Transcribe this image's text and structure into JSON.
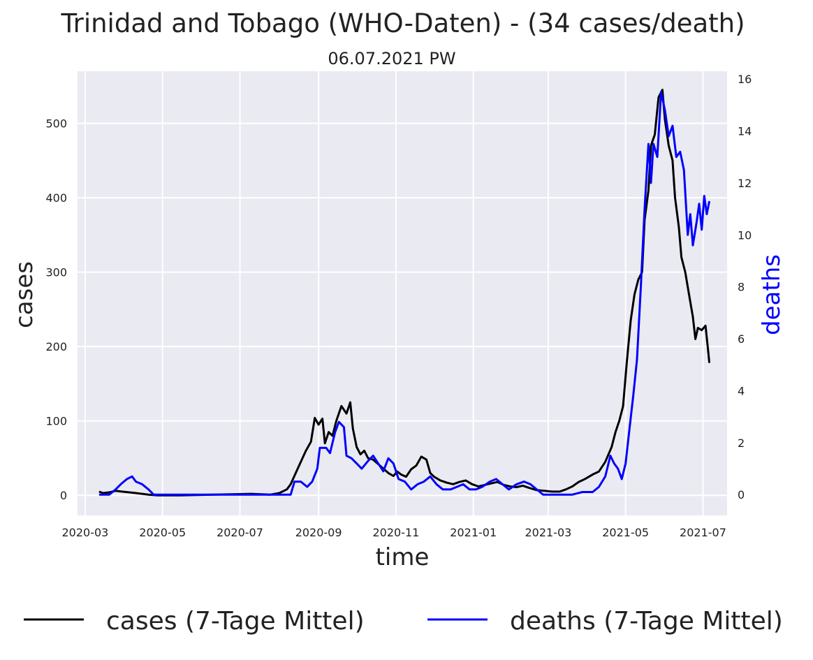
{
  "chart_data": {
    "type": "line",
    "title": "Trinidad and Tobago (WHO-Daten) - (34 cases/death)",
    "subtitle": "06.07.2021 PW",
    "xlabel": "time",
    "ylabel": "cases",
    "y2label": "deaths",
    "x_ticks": [
      "2020-03",
      "2020-05",
      "2020-07",
      "2020-09",
      "2020-11",
      "2021-01",
      "2021-03",
      "2021-05",
      "2021-07"
    ],
    "y_ticks": [
      0,
      100,
      200,
      300,
      400,
      500
    ],
    "y2_ticks": [
      0,
      2,
      4,
      6,
      8,
      10,
      12,
      14,
      16
    ],
    "xlim": [
      "2020-02-24",
      "2021-07-20"
    ],
    "ylim": [
      -27,
      570
    ],
    "y2lim": [
      -0.8,
      16.3
    ],
    "grid": true,
    "legend_position": "bottom",
    "series": [
      {
        "name": "cases (7-Tage Mittel)",
        "axis": "left",
        "color": "#000000",
        "points": [
          [
            "2020-03-12",
            5
          ],
          [
            "2020-03-15",
            3
          ],
          [
            "2020-03-20",
            4
          ],
          [
            "2020-03-25",
            6
          ],
          [
            "2020-03-30",
            5
          ],
          [
            "2020-04-05",
            4
          ],
          [
            "2020-04-10",
            3
          ],
          [
            "2020-04-15",
            2
          ],
          [
            "2020-04-20",
            1
          ],
          [
            "2020-04-27",
            0
          ],
          [
            "2020-05-15",
            0
          ],
          [
            "2020-06-10",
            1
          ],
          [
            "2020-07-10",
            2
          ],
          [
            "2020-07-25",
            1
          ],
          [
            "2020-08-01",
            3
          ],
          [
            "2020-08-07",
            8
          ],
          [
            "2020-08-10",
            15
          ],
          [
            "2020-08-14",
            30
          ],
          [
            "2020-08-18",
            45
          ],
          [
            "2020-08-22",
            60
          ],
          [
            "2020-08-26",
            72
          ],
          [
            "2020-08-29",
            104
          ],
          [
            "2020-09-01",
            95
          ],
          [
            "2020-09-04",
            103
          ],
          [
            "2020-09-06",
            70
          ],
          [
            "2020-09-09",
            85
          ],
          [
            "2020-09-12",
            80
          ],
          [
            "2020-09-15",
            100
          ],
          [
            "2020-09-19",
            120
          ],
          [
            "2020-09-23",
            110
          ],
          [
            "2020-09-26",
            125
          ],
          [
            "2020-09-28",
            90
          ],
          [
            "2020-10-01",
            65
          ],
          [
            "2020-10-04",
            55
          ],
          [
            "2020-10-07",
            60
          ],
          [
            "2020-10-10",
            50
          ],
          [
            "2020-10-14",
            48
          ],
          [
            "2020-10-18",
            42
          ],
          [
            "2020-10-22",
            36
          ],
          [
            "2020-10-26",
            30
          ],
          [
            "2020-10-30",
            26
          ],
          [
            "2020-11-02",
            32
          ],
          [
            "2020-11-05",
            28
          ],
          [
            "2020-11-09",
            25
          ],
          [
            "2020-11-13",
            35
          ],
          [
            "2020-11-17",
            40
          ],
          [
            "2020-11-21",
            52
          ],
          [
            "2020-11-25",
            48
          ],
          [
            "2020-11-28",
            30
          ],
          [
            "2020-12-01",
            25
          ],
          [
            "2020-12-06",
            20
          ],
          [
            "2020-12-11",
            17
          ],
          [
            "2020-12-16",
            15
          ],
          [
            "2020-12-21",
            18
          ],
          [
            "2020-12-26",
            20
          ],
          [
            "2020-12-31",
            15
          ],
          [
            "2021-01-05",
            12
          ],
          [
            "2021-01-10",
            14
          ],
          [
            "2021-01-15",
            16
          ],
          [
            "2021-01-20",
            18
          ],
          [
            "2021-01-25",
            14
          ],
          [
            "2021-01-30",
            12
          ],
          [
            "2021-02-04",
            11
          ],
          [
            "2021-02-09",
            13
          ],
          [
            "2021-02-14",
            10
          ],
          [
            "2021-02-20",
            7
          ],
          [
            "2021-02-26",
            6
          ],
          [
            "2021-03-04",
            5
          ],
          [
            "2021-03-10",
            5
          ],
          [
            "2021-03-15",
            8
          ],
          [
            "2021-03-20",
            12
          ],
          [
            "2021-03-25",
            18
          ],
          [
            "2021-03-30",
            22
          ],
          [
            "2021-04-05",
            28
          ],
          [
            "2021-04-10",
            32
          ],
          [
            "2021-04-15",
            45
          ],
          [
            "2021-04-20",
            65
          ],
          [
            "2021-04-23",
            85
          ],
          [
            "2021-04-26",
            100
          ],
          [
            "2021-04-29",
            120
          ],
          [
            "2021-05-02",
            180
          ],
          [
            "2021-05-05",
            235
          ],
          [
            "2021-05-08",
            270
          ],
          [
            "2021-05-11",
            290
          ],
          [
            "2021-05-14",
            300
          ],
          [
            "2021-05-16",
            370
          ],
          [
            "2021-05-19",
            410
          ],
          [
            "2021-05-21",
            470
          ],
          [
            "2021-05-24",
            485
          ],
          [
            "2021-05-27",
            535
          ],
          [
            "2021-05-30",
            545
          ],
          [
            "2021-06-01",
            505
          ],
          [
            "2021-06-04",
            470
          ],
          [
            "2021-06-07",
            450
          ],
          [
            "2021-06-09",
            400
          ],
          [
            "2021-06-12",
            360
          ],
          [
            "2021-06-14",
            320
          ],
          [
            "2021-06-17",
            300
          ],
          [
            "2021-06-20",
            270
          ],
          [
            "2021-06-23",
            240
          ],
          [
            "2021-06-25",
            210
          ],
          [
            "2021-06-27",
            225
          ],
          [
            "2021-06-30",
            222
          ],
          [
            "2021-07-03",
            228
          ],
          [
            "2021-07-05",
            195
          ],
          [
            "2021-07-06",
            178
          ]
        ]
      },
      {
        "name": "deaths (7-Tage Mittel)",
        "axis": "right",
        "color": "#0000ff",
        "points": [
          [
            "2020-03-12",
            0
          ],
          [
            "2020-03-20",
            0
          ],
          [
            "2020-03-25",
            0.2
          ],
          [
            "2020-03-29",
            0.4
          ],
          [
            "2020-04-03",
            0.6
          ],
          [
            "2020-04-07",
            0.7
          ],
          [
            "2020-04-10",
            0.5
          ],
          [
            "2020-04-15",
            0.4
          ],
          [
            "2020-04-20",
            0.2
          ],
          [
            "2020-04-24",
            0
          ],
          [
            "2020-06-01",
            0
          ],
          [
            "2020-08-10",
            0
          ],
          [
            "2020-08-13",
            0.5
          ],
          [
            "2020-08-18",
            0.5
          ],
          [
            "2020-08-23",
            0.3
          ],
          [
            "2020-08-27",
            0.5
          ],
          [
            "2020-08-31",
            1
          ],
          [
            "2020-09-02",
            1.8
          ],
          [
            "2020-09-07",
            1.8
          ],
          [
            "2020-09-10",
            1.6
          ],
          [
            "2020-09-14",
            2.4
          ],
          [
            "2020-09-17",
            2.8
          ],
          [
            "2020-09-21",
            2.6
          ],
          [
            "2020-09-23",
            1.5
          ],
          [
            "2020-09-27",
            1.4
          ],
          [
            "2020-10-01",
            1.2
          ],
          [
            "2020-10-05",
            1.0
          ],
          [
            "2020-10-10",
            1.3
          ],
          [
            "2020-10-14",
            1.5
          ],
          [
            "2020-10-18",
            1.2
          ],
          [
            "2020-10-22",
            0.9
          ],
          [
            "2020-10-26",
            1.4
          ],
          [
            "2020-10-30",
            1.2
          ],
          [
            "2020-11-03",
            0.6
          ],
          [
            "2020-11-08",
            0.5
          ],
          [
            "2020-11-13",
            0.2
          ],
          [
            "2020-11-18",
            0.4
          ],
          [
            "2020-11-23",
            0.5
          ],
          [
            "2020-11-28",
            0.7
          ],
          [
            "2020-12-03",
            0.4
          ],
          [
            "2020-12-08",
            0.2
          ],
          [
            "2020-12-14",
            0.2
          ],
          [
            "2020-12-19",
            0.3
          ],
          [
            "2020-12-24",
            0.4
          ],
          [
            "2020-12-29",
            0.2
          ],
          [
            "2021-01-03",
            0.2
          ],
          [
            "2021-01-08",
            0.3
          ],
          [
            "2021-01-14",
            0.5
          ],
          [
            "2021-01-19",
            0.6
          ],
          [
            "2021-01-24",
            0.4
          ],
          [
            "2021-01-29",
            0.2
          ],
          [
            "2021-02-04",
            0.4
          ],
          [
            "2021-02-10",
            0.5
          ],
          [
            "2021-02-15",
            0.4
          ],
          [
            "2021-02-20",
            0.2
          ],
          [
            "2021-02-25",
            0
          ],
          [
            "2021-03-10",
            0
          ],
          [
            "2021-03-20",
            0
          ],
          [
            "2021-03-28",
            0.1
          ],
          [
            "2021-04-05",
            0.1
          ],
          [
            "2021-04-10",
            0.3
          ],
          [
            "2021-04-15",
            0.7
          ],
          [
            "2021-04-19",
            1.5
          ],
          [
            "2021-04-22",
            1.2
          ],
          [
            "2021-04-25",
            1.0
          ],
          [
            "2021-04-28",
            0.6
          ],
          [
            "2021-05-01",
            1.2
          ],
          [
            "2021-05-04",
            2.5
          ],
          [
            "2021-05-07",
            3.8
          ],
          [
            "2021-05-10",
            5.2
          ],
          [
            "2021-05-13",
            8
          ],
          [
            "2021-05-16",
            11
          ],
          [
            "2021-05-19",
            13.5
          ],
          [
            "2021-05-21",
            12.0
          ],
          [
            "2021-05-23",
            13.5
          ],
          [
            "2021-05-26",
            13.0
          ],
          [
            "2021-05-29",
            15.5
          ],
          [
            "2021-06-01",
            14.8
          ],
          [
            "2021-06-04",
            13.8
          ],
          [
            "2021-06-07",
            14.2
          ],
          [
            "2021-06-10",
            13.0
          ],
          [
            "2021-06-13",
            13.2
          ],
          [
            "2021-06-16",
            12.5
          ],
          [
            "2021-06-19",
            10.0
          ],
          [
            "2021-06-21",
            10.8
          ],
          [
            "2021-06-23",
            9.6
          ],
          [
            "2021-06-26",
            10.5
          ],
          [
            "2021-06-28",
            11.2
          ],
          [
            "2021-06-30",
            10.2
          ],
          [
            "2021-07-02",
            11.5
          ],
          [
            "2021-07-04",
            10.8
          ],
          [
            "2021-07-06",
            11.3
          ]
        ]
      }
    ]
  }
}
